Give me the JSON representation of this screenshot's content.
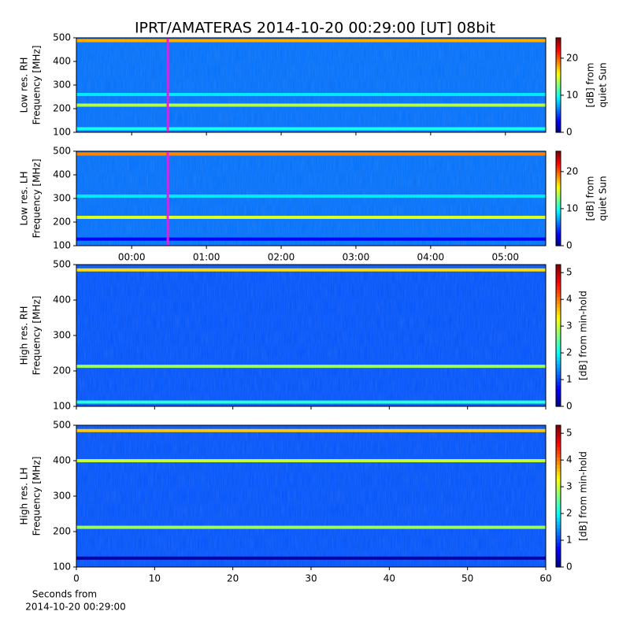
{
  "title": "IPRT/AMATERAS 2014-10-20 00:29:00 [UT]   08bit",
  "xlabel": [
    "Seconds from",
    "2014-10-20 00:29:00"
  ],
  "chart_data": [
    {
      "type": "heatmap",
      "colormap": "jet",
      "ylabel": [
        "Low res. RH",
        "Frequency [MHz]"
      ],
      "colorbar_label": [
        "[dB] from",
        "quiet Sun"
      ],
      "xlim": [
        -0.74,
        5.54
      ],
      "xticks": [
        0,
        1,
        2,
        3,
        4,
        5
      ],
      "xticklabels": false,
      "ylim": [
        100,
        500
      ],
      "yticks": [
        100,
        200,
        300,
        400,
        500
      ],
      "zlim": [
        0,
        25.5
      ],
      "zticks": [
        0,
        10,
        20
      ],
      "background": 6,
      "bands": [
        {
          "freq": 488,
          "db": 18
        },
        {
          "freq": 215,
          "db": 14
        },
        {
          "freq": 115,
          "db": 10
        },
        {
          "freq": 260,
          "db": 9
        }
      ],
      "marker": 0.483
    },
    {
      "type": "heatmap",
      "colormap": "jet",
      "ylabel": [
        "Low res. LH",
        "Frequency [MHz]"
      ],
      "colorbar_label": [
        "[dB] from",
        "quiet Sun"
      ],
      "xlim": [
        -0.74,
        5.54
      ],
      "xticks": [
        {
          "value": 0,
          "label": "00:00"
        },
        {
          "value": 1,
          "label": "01:00"
        },
        {
          "value": 2,
          "label": "02:00"
        },
        {
          "value": 3,
          "label": "03:00"
        },
        {
          "value": 4,
          "label": "04:00"
        },
        {
          "value": 5,
          "label": "05:00"
        }
      ],
      "xticklabels": true,
      "ylim": [
        100,
        500
      ],
      "yticks": [
        100,
        200,
        300,
        400,
        500
      ],
      "zlim": [
        0,
        25.5
      ],
      "zticks": [
        0,
        10,
        20
      ],
      "background": 6,
      "bands": [
        {
          "freq": 488,
          "db": 19
        },
        {
          "freq": 220,
          "db": 15
        },
        {
          "freq": 310,
          "db": 9
        },
        {
          "freq": 128,
          "db": 3
        }
      ],
      "marker": 0.483
    },
    {
      "type": "heatmap",
      "colormap": "jet",
      "ylabel": [
        "High res. RH",
        "Frequency [MHz]"
      ],
      "colorbar_label": [
        "[dB] from min-hold"
      ],
      "xlim": [
        0,
        60
      ],
      "xticks": [
        0,
        10,
        20,
        30,
        40,
        50,
        60
      ],
      "xticklabels": false,
      "ylim": [
        100,
        500
      ],
      "yticks": [
        100,
        200,
        300,
        400,
        500
      ],
      "zlim": [
        0,
        5.3
      ],
      "zticks": [
        0,
        1,
        2,
        3,
        4,
        5
      ],
      "background": 1.1,
      "bands": [
        {
          "freq": 485,
          "db": 3.5
        },
        {
          "freq": 213,
          "db": 2.8
        },
        {
          "freq": 112,
          "db": 2.2
        }
      ]
    },
    {
      "type": "heatmap",
      "colormap": "jet",
      "ylabel": [
        "High res. LH",
        "Frequency [MHz]"
      ],
      "colorbar_label": [
        "[dB] from min-hold"
      ],
      "xlim": [
        0,
        60
      ],
      "xticks": [
        0,
        10,
        20,
        30,
        40,
        50,
        60
      ],
      "xticklabels": true,
      "ylim": [
        100,
        500
      ],
      "yticks": [
        100,
        200,
        300,
        400,
        500
      ],
      "zlim": [
        0,
        5.3
      ],
      "zticks": [
        0,
        1,
        2,
        3,
        4,
        5
      ],
      "background": 1.1,
      "bands": [
        {
          "freq": 485,
          "db": 3.6
        },
        {
          "freq": 400,
          "db": 3
        },
        {
          "freq": 212,
          "db": 2.8
        },
        {
          "freq": 125,
          "db": 0.2
        }
      ]
    }
  ]
}
